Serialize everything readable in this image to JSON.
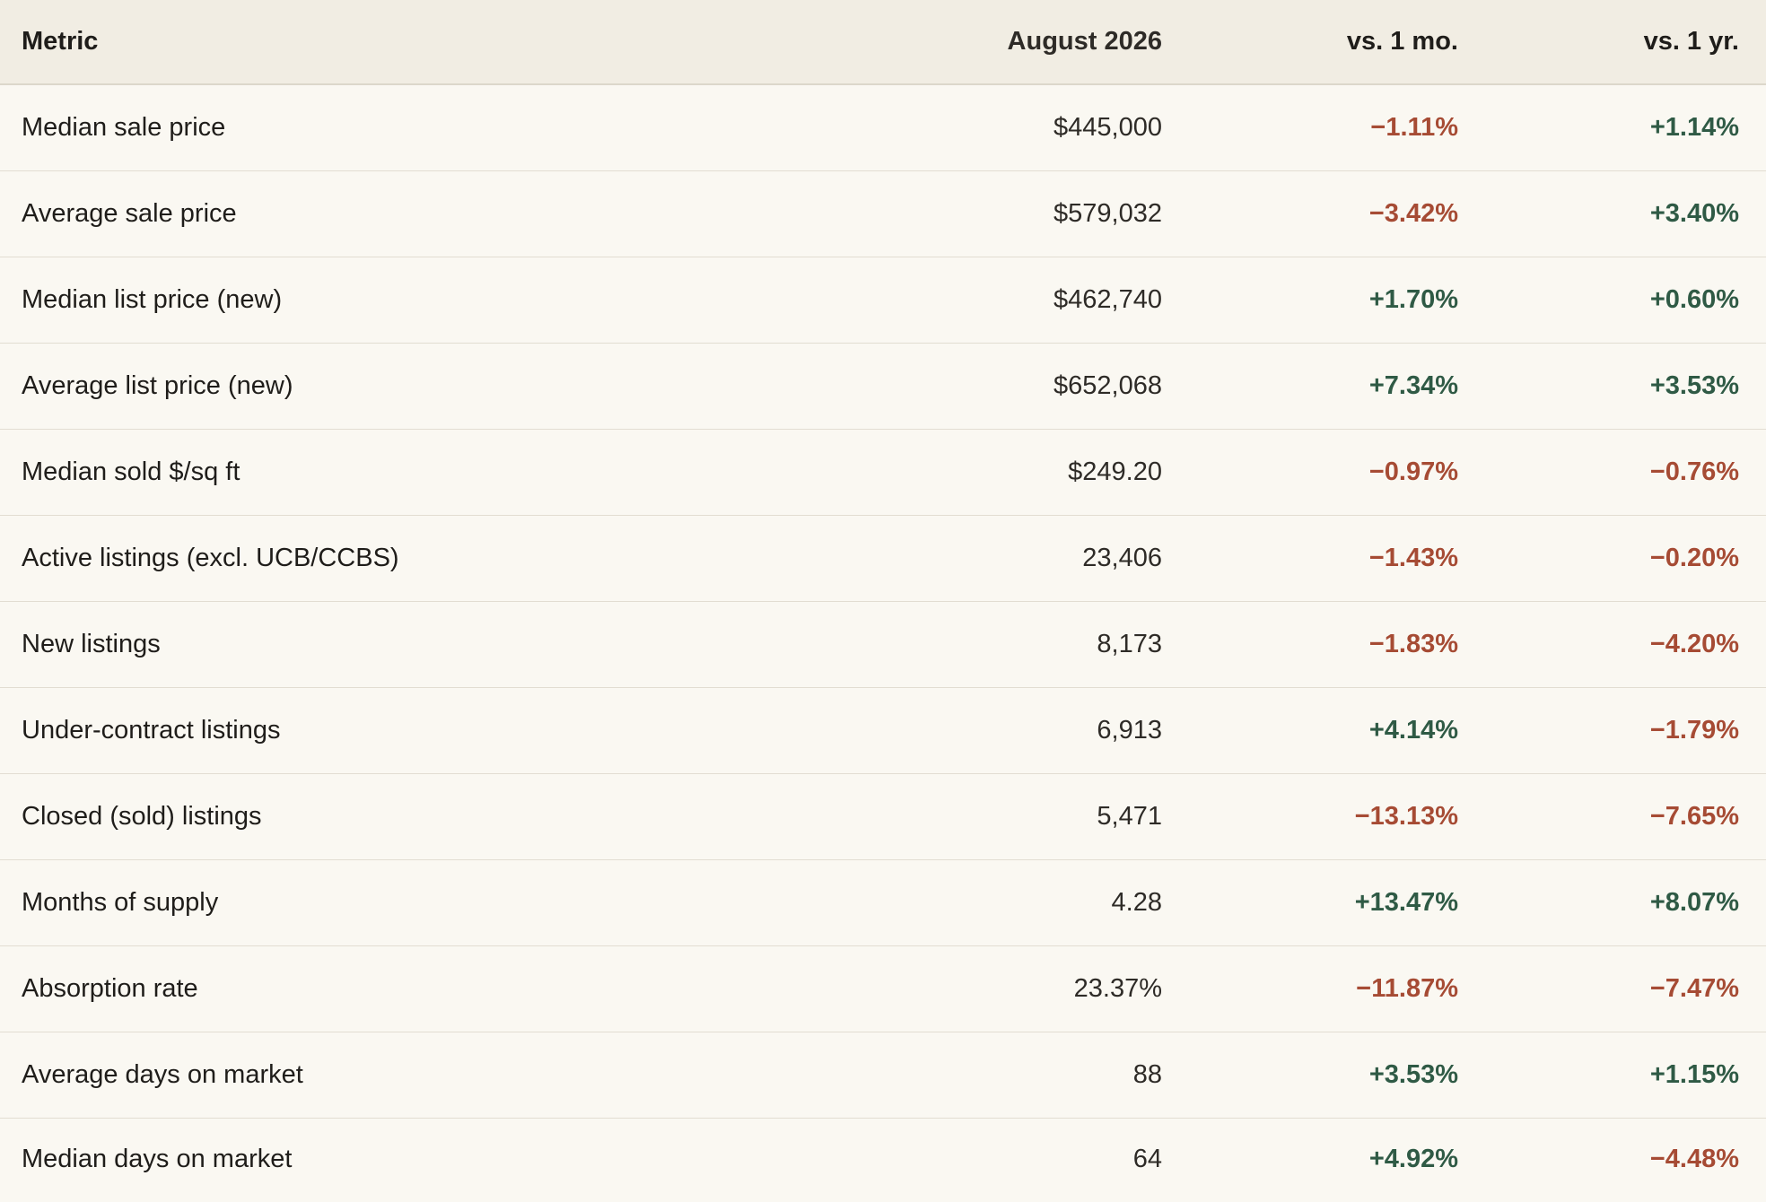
{
  "colors": {
    "negative": "#a64b34",
    "positive": "#2f5a45",
    "header_bg": "#f1ede3",
    "body_bg": "#faf8f2"
  },
  "table": {
    "headers": {
      "metric": "Metric",
      "value": "August 2026",
      "vs_month": "vs. 1 mo.",
      "vs_year": "vs. 1 yr."
    },
    "rows": [
      {
        "metric": "Median sale price",
        "value": "$445,000",
        "vs_month": "−1.11%",
        "vs_month_dir": "neg",
        "vs_year": "+1.14%",
        "vs_year_dir": "pos"
      },
      {
        "metric": "Average sale price",
        "value": "$579,032",
        "vs_month": "−3.42%",
        "vs_month_dir": "neg",
        "vs_year": "+3.40%",
        "vs_year_dir": "pos"
      },
      {
        "metric": "Median list price (new)",
        "value": "$462,740",
        "vs_month": "+1.70%",
        "vs_month_dir": "pos",
        "vs_year": "+0.60%",
        "vs_year_dir": "pos"
      },
      {
        "metric": "Average list price (new)",
        "value": "$652,068",
        "vs_month": "+7.34%",
        "vs_month_dir": "pos",
        "vs_year": "+3.53%",
        "vs_year_dir": "pos"
      },
      {
        "metric": "Median sold $/sq ft",
        "value": "$249.20",
        "vs_month": "−0.97%",
        "vs_month_dir": "neg",
        "vs_year": "−0.76%",
        "vs_year_dir": "neg"
      },
      {
        "metric": "Active listings (excl. UCB/CCBS)",
        "value": "23,406",
        "vs_month": "−1.43%",
        "vs_month_dir": "neg",
        "vs_year": "−0.20%",
        "vs_year_dir": "neg"
      },
      {
        "metric": "New listings",
        "value": "8,173",
        "vs_month": "−1.83%",
        "vs_month_dir": "neg",
        "vs_year": "−4.20%",
        "vs_year_dir": "neg"
      },
      {
        "metric": "Under-contract listings",
        "value": "6,913",
        "vs_month": "+4.14%",
        "vs_month_dir": "pos",
        "vs_year": "−1.79%",
        "vs_year_dir": "neg"
      },
      {
        "metric": "Closed (sold) listings",
        "value": "5,471",
        "vs_month": "−13.13%",
        "vs_month_dir": "neg",
        "vs_year": "−7.65%",
        "vs_year_dir": "neg"
      },
      {
        "metric": "Months of supply",
        "value": "4.28",
        "vs_month": "+13.47%",
        "vs_month_dir": "pos",
        "vs_year": "+8.07%",
        "vs_year_dir": "pos"
      },
      {
        "metric": "Absorption rate",
        "value": "23.37%",
        "vs_month": "−11.87%",
        "vs_month_dir": "neg",
        "vs_year": "−7.47%",
        "vs_year_dir": "neg"
      },
      {
        "metric": "Average days on market",
        "value": "88",
        "vs_month": "+3.53%",
        "vs_month_dir": "pos",
        "vs_year": "+1.15%",
        "vs_year_dir": "pos"
      },
      {
        "metric": "Median days on market",
        "value": "64",
        "vs_month": "+4.92%",
        "vs_month_dir": "pos",
        "vs_year": "−4.48%",
        "vs_year_dir": "neg"
      }
    ]
  }
}
